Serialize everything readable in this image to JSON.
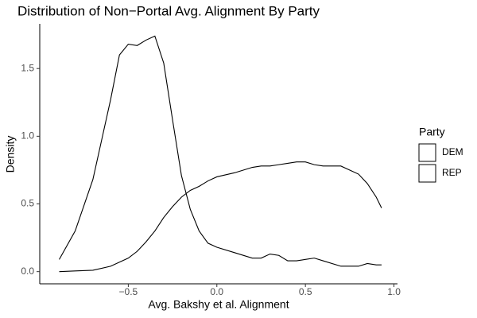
{
  "chart_data": {
    "type": "line",
    "title": "Distribution of Non−Portal Avg. Alignment By Party",
    "x_label": "Avg. Bakshy et al. Alignment",
    "y_label": "Density",
    "legend_title": "Party",
    "legend": "right",
    "x": [
      -0.89,
      -0.8,
      -0.7,
      -0.6,
      -0.55,
      -0.5,
      -0.45,
      -0.4,
      -0.35,
      -0.3,
      -0.25,
      -0.2,
      -0.15,
      -0.1,
      -0.05,
      0,
      0.1,
      0.2,
      0.25,
      0.3,
      0.35,
      0.4,
      0.45,
      0.5,
      0.55,
      0.6,
      0.7,
      0.8,
      0.85,
      0.9,
      0.93
    ],
    "series": [
      {
        "name": "DEM",
        "color": "#000000",
        "values": [
          0.09,
          0.3,
          0.68,
          1.27,
          1.6,
          1.68,
          1.67,
          1.71,
          1.74,
          1.54,
          1.12,
          0.71,
          0.46,
          0.3,
          0.21,
          0.18,
          0.14,
          0.1,
          0.1,
          0.13,
          0.12,
          0.08,
          0.08,
          0.09,
          0.1,
          0.08,
          0.04,
          0.04,
          0.06,
          0.05,
          0.05
        ]
      },
      {
        "name": "REP",
        "color": "#000000",
        "values": [
          0,
          0.005,
          0.01,
          0.04,
          0.07,
          0.1,
          0.15,
          0.22,
          0.3,
          0.4,
          0.48,
          0.55,
          0.6,
          0.63,
          0.67,
          0.7,
          0.73,
          0.77,
          0.78,
          0.78,
          0.79,
          0.8,
          0.81,
          0.81,
          0.79,
          0.78,
          0.78,
          0.72,
          0.65,
          0.55,
          0.47
        ]
      }
    ],
    "xlim": [
      -1.0,
      1.02
    ],
    "ylim": [
      -0.09,
      1.83
    ],
    "xticks": [
      {
        "value": -0.5,
        "label": "−0.5"
      },
      {
        "value": 0,
        "label": "0.0"
      },
      0.5,
      {
        "value": 1,
        "label": "1.0"
      }
    ],
    "yticks": [
      {
        "value": 0,
        "label": "0.0"
      },
      0.5,
      {
        "value": 1,
        "label": "1.0"
      },
      1.5
    ]
  }
}
